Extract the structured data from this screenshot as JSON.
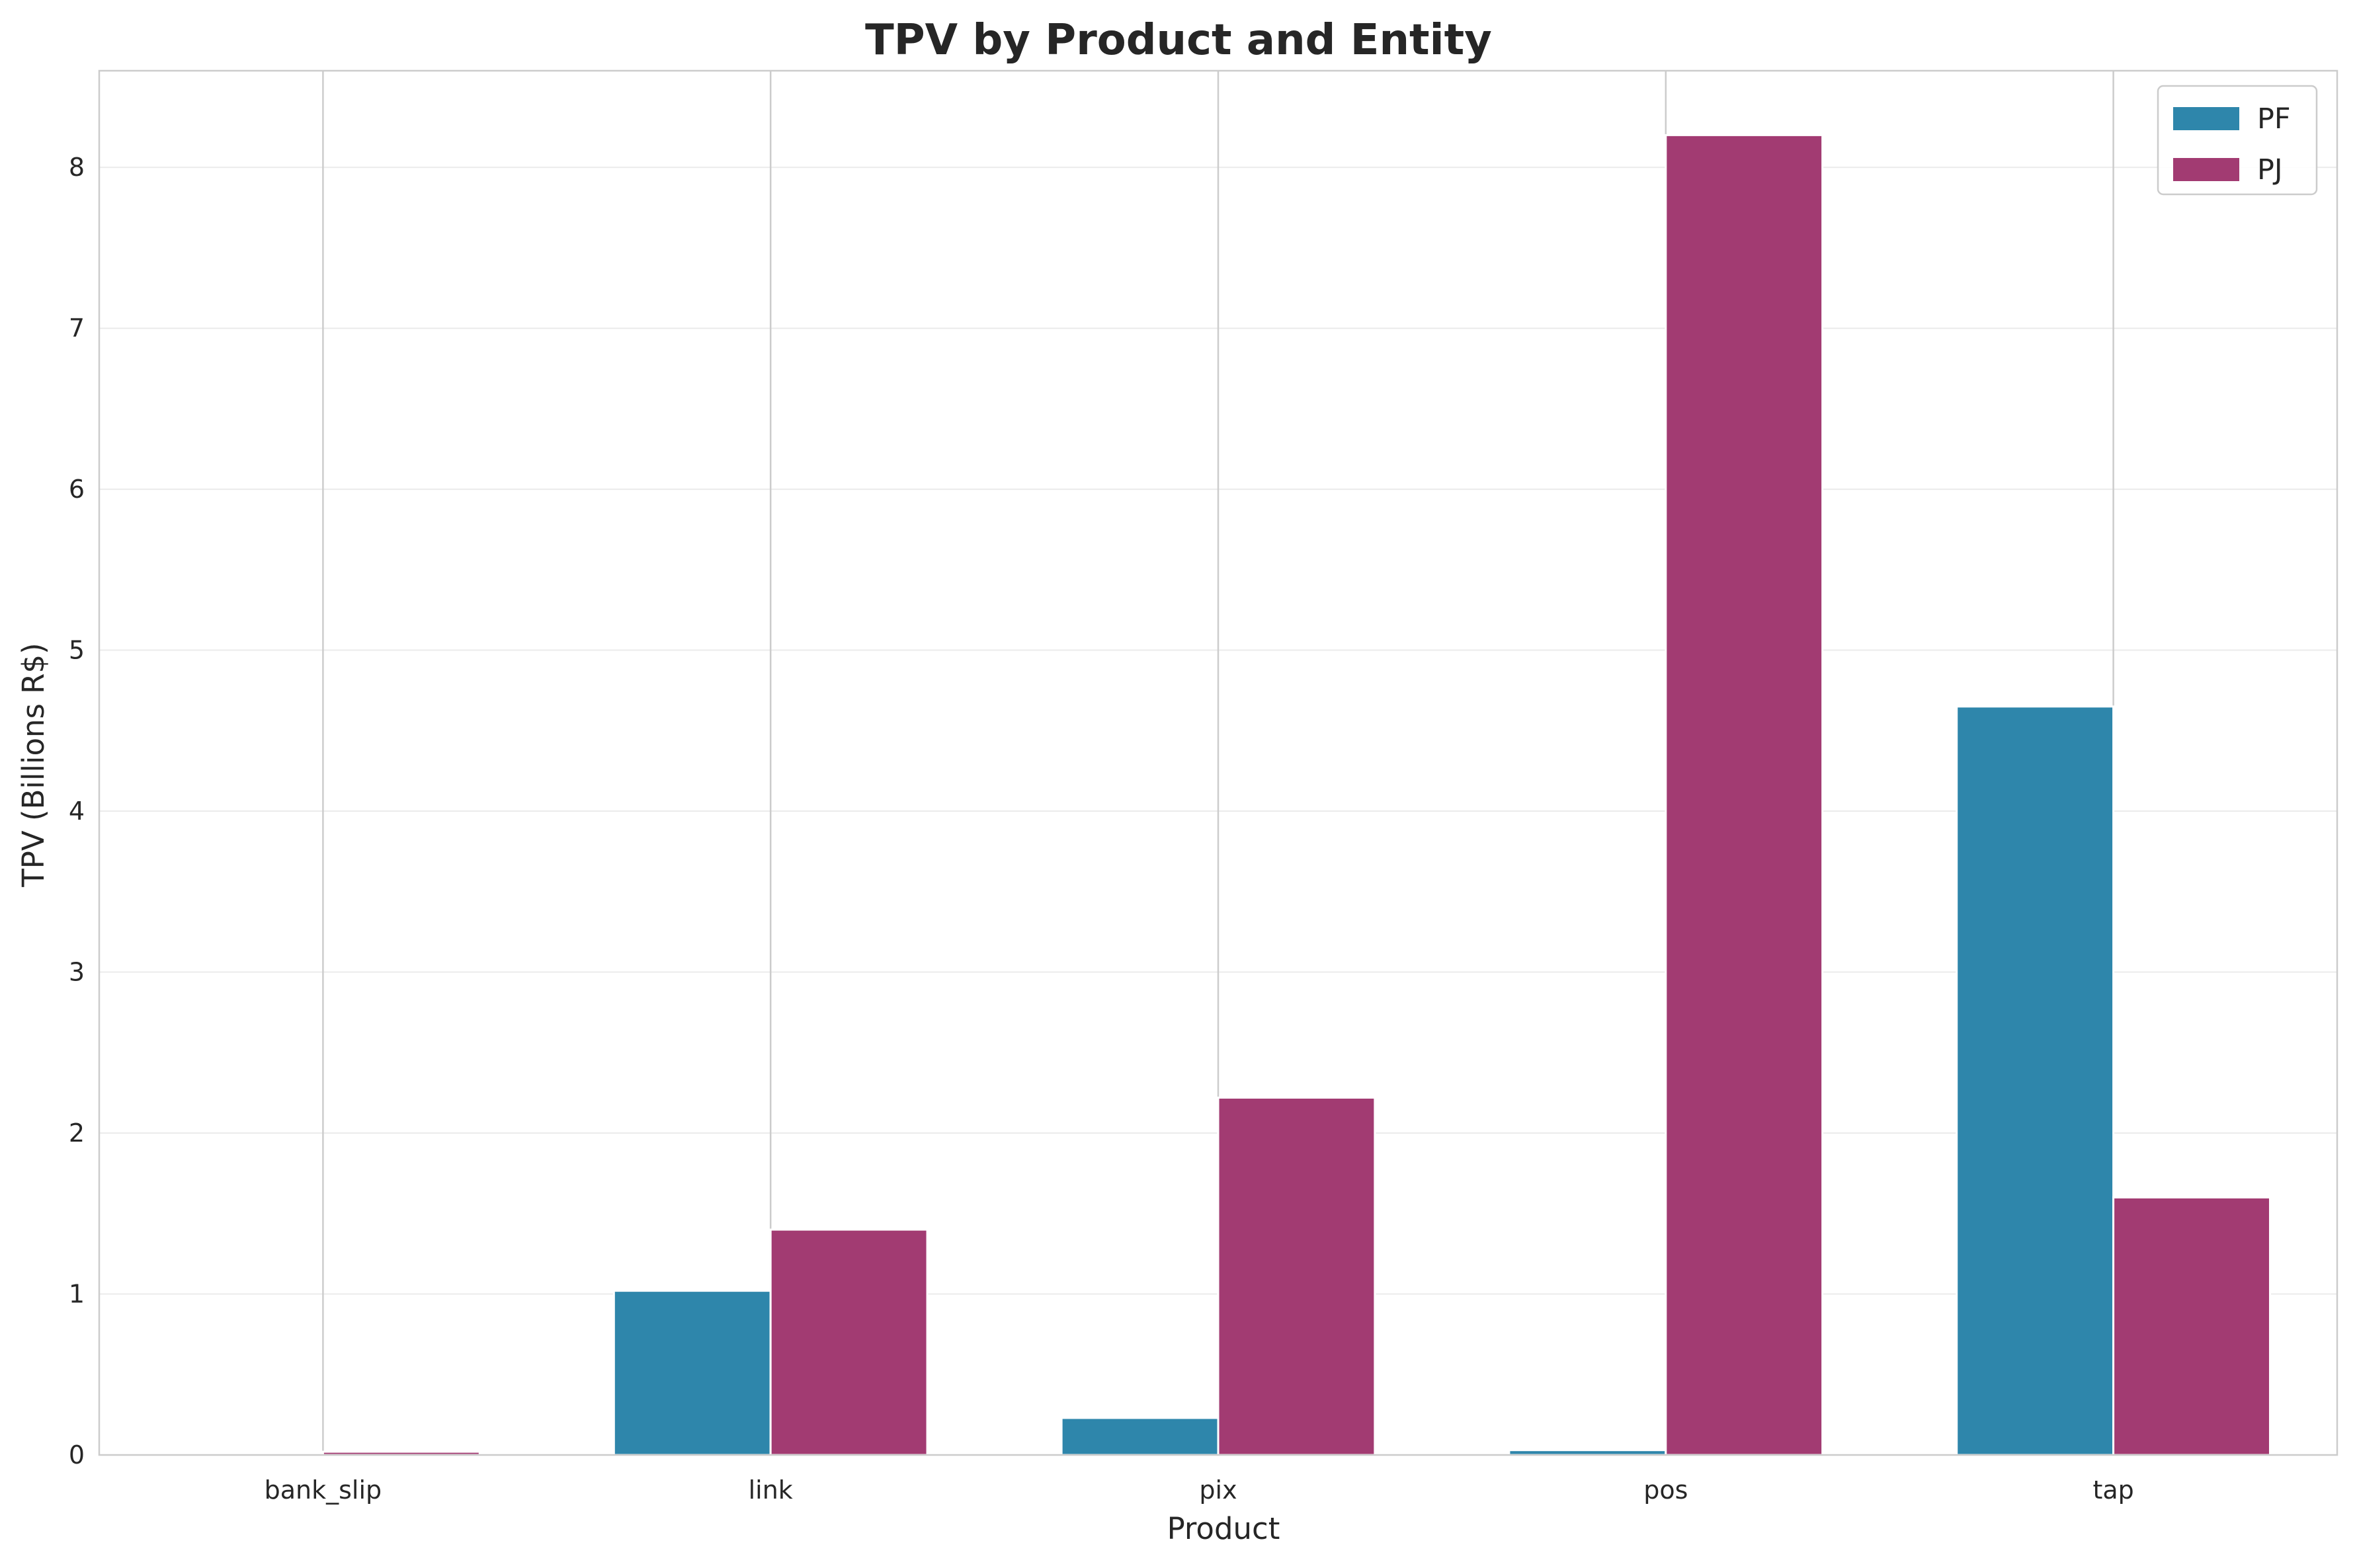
{
  "chart_data": {
    "type": "bar",
    "title": "TPV by Product and Entity",
    "xlabel": "Product",
    "ylabel": "TPV (Billions R$)",
    "categories": [
      "bank_slip",
      "link",
      "pix",
      "pos",
      "tap"
    ],
    "series": [
      {
        "name": "PF",
        "color": "#2e86ab",
        "values": [
          0.0,
          1.02,
          0.23,
          0.03,
          4.65
        ]
      },
      {
        "name": "PJ",
        "color": "#a23b72",
        "values": [
          0.02,
          1.4,
          2.22,
          8.2,
          1.6
        ]
      }
    ],
    "ylim": [
      0,
      8.6
    ],
    "yticks": [
      0,
      1,
      2,
      3,
      4,
      5,
      6,
      7,
      8
    ],
    "grid": true,
    "legend_position": "top-right"
  }
}
